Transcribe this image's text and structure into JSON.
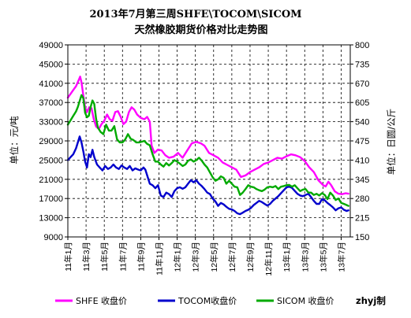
{
  "chart_data": {
    "type": "line",
    "title": "2013年7月第三周SHFE\\TOCOM\\SICOM",
    "subtitle": "天然橡胶期货价格对比走势图",
    "ylabel_left": "单位：元/吨",
    "ylabel_right": "单位：日圆/公斤",
    "ylim_left": [
      9000,
      49000
    ],
    "yticks_left": [
      9000,
      13000,
      17000,
      21000,
      25000,
      29000,
      33000,
      37000,
      41000,
      45000,
      49000
    ],
    "ylim_right": [
      150,
      800
    ],
    "yticks_right": [
      150,
      215,
      280,
      345,
      410,
      475,
      540,
      605,
      670,
      735,
      800
    ],
    "x_range_months": [
      0,
      31
    ],
    "xticks": [
      {
        "m": 0,
        "label": "11年1月"
      },
      {
        "m": 2,
        "label": "11年3月"
      },
      {
        "m": 4,
        "label": "11年5月"
      },
      {
        "m": 6,
        "label": "11年7月"
      },
      {
        "m": 8,
        "label": "11年9月"
      },
      {
        "m": 10,
        "label": "11年11月"
      },
      {
        "m": 12,
        "label": "12年1月"
      },
      {
        "m": 14,
        "label": "12年3月"
      },
      {
        "m": 16,
        "label": "12年5月"
      },
      {
        "m": 18,
        "label": "12年7月"
      },
      {
        "m": 20,
        "label": "12年9月"
      },
      {
        "m": 22,
        "label": "12年11月"
      },
      {
        "m": 24,
        "label": "13年1月"
      },
      {
        "m": 26,
        "label": "13年3月"
      },
      {
        "m": 28,
        "label": "13年5月"
      },
      {
        "m": 30,
        "label": "13年7月"
      }
    ],
    "grid": true,
    "legend_position": "bottom",
    "credit": "zhyj制",
    "series": [
      {
        "name": "SHFE 收盘价",
        "axis": "left",
        "color": "#ff00ff",
        "points": [
          [
            0,
            38000
          ],
          [
            0.3,
            38800
          ],
          [
            0.6,
            39600
          ],
          [
            0.9,
            40400
          ],
          [
            1.15,
            41500
          ],
          [
            1.35,
            42400
          ],
          [
            1.5,
            41200
          ],
          [
            1.7,
            38500
          ],
          [
            1.9,
            36000
          ],
          [
            2.1,
            35000
          ],
          [
            2.35,
            36000
          ],
          [
            2.6,
            35800
          ],
          [
            2.85,
            33500
          ],
          [
            3.1,
            32000
          ],
          [
            3.4,
            31500
          ],
          [
            3.7,
            32500
          ],
          [
            4.0,
            33200
          ],
          [
            4.3,
            34500
          ],
          [
            4.6,
            33500
          ],
          [
            4.9,
            33200
          ],
          [
            5.2,
            35000
          ],
          [
            5.5,
            35200
          ],
          [
            5.8,
            34000
          ],
          [
            6.1,
            32500
          ],
          [
            6.4,
            33000
          ],
          [
            6.7,
            35000
          ],
          [
            7.0,
            36000
          ],
          [
            7.3,
            35500
          ],
          [
            7.6,
            34500
          ],
          [
            8.0,
            33800
          ],
          [
            8.4,
            33500
          ],
          [
            8.7,
            34000
          ],
          [
            9.0,
            33000
          ],
          [
            9.2,
            28000
          ],
          [
            9.5,
            26500
          ],
          [
            9.9,
            27200
          ],
          [
            10.3,
            27000
          ],
          [
            10.7,
            26000
          ],
          [
            11.1,
            25500
          ],
          [
            11.6,
            25700
          ],
          [
            12.1,
            26500
          ],
          [
            12.6,
            25500
          ],
          [
            13.1,
            27000
          ],
          [
            13.6,
            28500
          ],
          [
            14.1,
            28800
          ],
          [
            14.6,
            28500
          ],
          [
            15.0,
            28000
          ],
          [
            15.5,
            26500
          ],
          [
            16.0,
            26000
          ],
          [
            16.5,
            25500
          ],
          [
            17.0,
            24500
          ],
          [
            17.5,
            24000
          ],
          [
            18.0,
            23500
          ],
          [
            18.5,
            23000
          ],
          [
            19.0,
            21500
          ],
          [
            19.5,
            21800
          ],
          [
            20.0,
            22500
          ],
          [
            20.5,
            23000
          ],
          [
            21.0,
            23500
          ],
          [
            21.5,
            24200
          ],
          [
            22.0,
            24500
          ],
          [
            22.5,
            25000
          ],
          [
            23.0,
            25500
          ],
          [
            23.5,
            25300
          ],
          [
            24.0,
            25800
          ],
          [
            24.5,
            26200
          ],
          [
            25.0,
            26000
          ],
          [
            25.5,
            25600
          ],
          [
            26.0,
            24800
          ],
          [
            26.5,
            23500
          ],
          [
            27.0,
            22500
          ],
          [
            27.5,
            20800
          ],
          [
            28.0,
            19800
          ],
          [
            28.3,
            19500
          ],
          [
            28.6,
            20500
          ],
          [
            28.9,
            19800
          ],
          [
            29.3,
            18500
          ],
          [
            29.7,
            18000
          ],
          [
            30.1,
            17900
          ],
          [
            30.5,
            18100
          ],
          [
            30.8,
            18000
          ]
        ]
      },
      {
        "name": "TOCOM收盘价",
        "axis": "right",
        "color": "#0000cc",
        "points": [
          [
            0,
            410
          ],
          [
            0.3,
            420
          ],
          [
            0.6,
            430
          ],
          [
            0.9,
            450
          ],
          [
            1.1,
            470
          ],
          [
            1.3,
            490
          ],
          [
            1.5,
            470
          ],
          [
            1.7,
            440
          ],
          [
            1.9,
            405
          ],
          [
            2.1,
            385
          ],
          [
            2.3,
            430
          ],
          [
            2.5,
            420
          ],
          [
            2.7,
            445
          ],
          [
            2.9,
            420
          ],
          [
            3.2,
            395
          ],
          [
            3.5,
            385
          ],
          [
            3.8,
            375
          ],
          [
            4.1,
            390
          ],
          [
            4.4,
            380
          ],
          [
            4.7,
            385
          ],
          [
            5.0,
            395
          ],
          [
            5.3,
            385
          ],
          [
            5.6,
            380
          ],
          [
            5.9,
            392
          ],
          [
            6.2,
            385
          ],
          [
            6.5,
            380
          ],
          [
            6.8,
            390
          ],
          [
            7.1,
            375
          ],
          [
            7.4,
            382
          ],
          [
            7.7,
            378
          ],
          [
            8.0,
            375
          ],
          [
            8.3,
            385
          ],
          [
            8.5,
            378
          ],
          [
            9.0,
            330
          ],
          [
            9.3,
            325
          ],
          [
            9.6,
            315
          ],
          [
            9.9,
            325
          ],
          [
            10.2,
            290
          ],
          [
            10.5,
            285
          ],
          [
            10.8,
            300
          ],
          [
            11.1,
            295
          ],
          [
            11.4,
            285
          ],
          [
            11.7,
            305
          ],
          [
            12.0,
            315
          ],
          [
            12.3,
            318
          ],
          [
            12.6,
            313
          ],
          [
            12.9,
            318
          ],
          [
            13.2,
            330
          ],
          [
            13.5,
            342
          ],
          [
            13.8,
            335
          ],
          [
            14.1,
            342
          ],
          [
            14.4,
            330
          ],
          [
            14.7,
            322
          ],
          [
            15.0,
            312
          ],
          [
            15.3,
            300
          ],
          [
            15.6,
            295
          ],
          [
            15.9,
            280
          ],
          [
            16.2,
            270
          ],
          [
            16.5,
            255
          ],
          [
            16.8,
            265
          ],
          [
            17.1,
            260
          ],
          [
            17.4,
            252
          ],
          [
            17.7,
            245
          ],
          [
            18.0,
            243
          ],
          [
            18.3,
            238
          ],
          [
            18.6,
            230
          ],
          [
            18.9,
            227
          ],
          [
            19.2,
            232
          ],
          [
            19.5,
            238
          ],
          [
            19.8,
            242
          ],
          [
            20.1,
            248
          ],
          [
            20.4,
            258
          ],
          [
            20.7,
            265
          ],
          [
            21.0,
            272
          ],
          [
            21.3,
            268
          ],
          [
            21.6,
            262
          ],
          [
            21.9,
            256
          ],
          [
            22.2,
            262
          ],
          [
            22.5,
            272
          ],
          [
            22.8,
            280
          ],
          [
            23.1,
            288
          ],
          [
            23.4,
            298
          ],
          [
            23.7,
            308
          ],
          [
            24.0,
            318
          ],
          [
            24.3,
            320
          ],
          [
            24.6,
            316
          ],
          [
            24.9,
            306
          ],
          [
            25.2,
            296
          ],
          [
            25.5,
            290
          ],
          [
            25.8,
            288
          ],
          [
            26.1,
            292
          ],
          [
            26.4,
            296
          ],
          [
            26.7,
            285
          ],
          [
            27.0,
            272
          ],
          [
            27.3,
            262
          ],
          [
            27.6,
            262
          ],
          [
            27.9,
            278
          ],
          [
            28.2,
            274
          ],
          [
            28.5,
            265
          ],
          [
            28.8,
            258
          ],
          [
            29.1,
            250
          ],
          [
            29.4,
            240
          ],
          [
            29.7,
            247
          ],
          [
            30.0,
            250
          ],
          [
            30.3,
            242
          ],
          [
            30.6,
            238
          ],
          [
            30.8,
            240
          ]
        ]
      },
      {
        "name": "SICOM 收盘价",
        "axis": "right",
        "color": "#00aa00",
        "points": [
          [
            0,
            530
          ],
          [
            0.3,
            545
          ],
          [
            0.6,
            560
          ],
          [
            0.9,
            575
          ],
          [
            1.1,
            590
          ],
          [
            1.3,
            610
          ],
          [
            1.5,
            630
          ],
          [
            1.7,
            620
          ],
          [
            1.9,
            570
          ],
          [
            2.1,
            555
          ],
          [
            2.3,
            560
          ],
          [
            2.5,
            590
          ],
          [
            2.7,
            612
          ],
          [
            2.9,
            600
          ],
          [
            3.1,
            550
          ],
          [
            3.3,
            520
          ],
          [
            3.6,
            505
          ],
          [
            3.9,
            498
          ],
          [
            4.2,
            530
          ],
          [
            4.5,
            510
          ],
          [
            4.8,
            510
          ],
          [
            5.1,
            525
          ],
          [
            5.4,
            480
          ],
          [
            5.7,
            470
          ],
          [
            6.0,
            470
          ],
          [
            6.3,
            480
          ],
          [
            6.6,
            498
          ],
          [
            6.9,
            482
          ],
          [
            7.2,
            478
          ],
          [
            7.5,
            470
          ],
          [
            7.8,
            470
          ],
          [
            8.1,
            472
          ],
          [
            8.4,
            475
          ],
          [
            8.7,
            465
          ],
          [
            9.0,
            460
          ],
          [
            9.3,
            430
          ],
          [
            9.6,
            405
          ],
          [
            9.9,
            405
          ],
          [
            10.2,
            395
          ],
          [
            10.5,
            388
          ],
          [
            10.8,
            400
          ],
          [
            11.1,
            392
          ],
          [
            11.4,
            400
          ],
          [
            11.7,
            410
          ],
          [
            12.0,
            405
          ],
          [
            12.3,
            398
          ],
          [
            12.6,
            390
          ],
          [
            12.9,
            395
          ],
          [
            13.2,
            408
          ],
          [
            13.5,
            412
          ],
          [
            13.8,
            405
          ],
          [
            14.1,
            410
          ],
          [
            14.4,
            418
          ],
          [
            14.7,
            408
          ],
          [
            15.0,
            395
          ],
          [
            15.3,
            385
          ],
          [
            15.6,
            368
          ],
          [
            15.9,
            352
          ],
          [
            16.2,
            340
          ],
          [
            16.5,
            345
          ],
          [
            16.8,
            355
          ],
          [
            17.1,
            350
          ],
          [
            17.4,
            330
          ],
          [
            17.7,
            340
          ],
          [
            18.0,
            330
          ],
          [
            18.3,
            320
          ],
          [
            18.6,
            318
          ],
          [
            18.9,
            292
          ],
          [
            19.2,
            300
          ],
          [
            19.5,
            312
          ],
          [
            19.8,
            325
          ],
          [
            20.1,
            320
          ],
          [
            20.4,
            318
          ],
          [
            20.7,
            312
          ],
          [
            21.0,
            308
          ],
          [
            21.3,
            305
          ],
          [
            21.6,
            310
          ],
          [
            21.9,
            318
          ],
          [
            22.2,
            320
          ],
          [
            22.5,
            318
          ],
          [
            22.8,
            322
          ],
          [
            23.1,
            312
          ],
          [
            23.4,
            320
          ],
          [
            23.7,
            322
          ],
          [
            24.0,
            325
          ],
          [
            24.3,
            326
          ],
          [
            24.6,
            320
          ],
          [
            24.9,
            325
          ],
          [
            25.2,
            315
          ],
          [
            25.5,
            305
          ],
          [
            25.8,
            310
          ],
          [
            26.1,
            312
          ],
          [
            26.4,
            300
          ],
          [
            26.7,
            300
          ],
          [
            27.0,
            292
          ],
          [
            27.3,
            296
          ],
          [
            27.6,
            290
          ],
          [
            27.9,
            298
          ],
          [
            28.2,
            292
          ],
          [
            28.5,
            278
          ],
          [
            28.8,
            300
          ],
          [
            29.1,
            290
          ],
          [
            29.4,
            275
          ],
          [
            29.7,
            280
          ],
          [
            30.0,
            265
          ],
          [
            30.3,
            262
          ],
          [
            30.6,
            258
          ],
          [
            30.8,
            255
          ]
        ]
      }
    ]
  }
}
